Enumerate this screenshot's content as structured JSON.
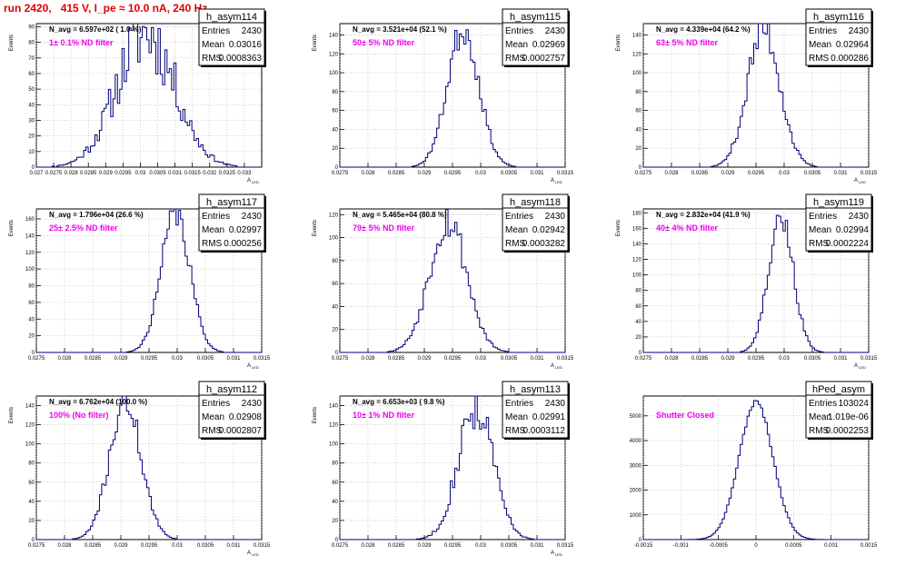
{
  "title": "run 2420,   415 V, I_pe ≈ 10.0 nA, 240 Hz",
  "colors": {
    "title": "#e00000",
    "histogram": "#00007a",
    "filter_label": "#ee00ee",
    "grid": "#b0b0b0"
  },
  "chart_data": [
    {
      "type": "histogram",
      "name": "h_asym114",
      "navg": "N_avg = 6.597e+02 ( 1.0 %)",
      "filter": "1± 0.1% ND filter",
      "xlabel": "A_LED",
      "ylabel": "Events",
      "xlim": [
        0.027,
        0.0335
      ],
      "ylim": [
        0,
        92
      ],
      "xticks": [
        "0.027",
        "0.0275",
        "0.028",
        "0.0285",
        "0.029",
        "0.0295",
        "0.03",
        "0.0305",
        "0.031",
        "0.0315",
        "0.032",
        "0.0325",
        "0.033"
      ],
      "yticks": [
        0,
        10,
        20,
        30,
        40,
        50,
        60,
        70,
        80,
        90
      ],
      "stats": {
        "Entries": "2430",
        "Mean": "0.03016",
        "RMS": "0.0008363"
      },
      "data": {
        "mean": 0.03016,
        "sigma": 0.00084,
        "peak": 86,
        "nbins": 100,
        "noise": 0.28,
        "seed": 11
      }
    },
    {
      "type": "histogram",
      "name": "h_asym115",
      "navg": "N_avg = 3.521e+04 (52.1 %)",
      "filter": "50± 5% ND filter",
      "xlabel": "A_LED",
      "ylabel": "Events",
      "xlim": [
        0.0275,
        0.0315
      ],
      "ylim": [
        0,
        152
      ],
      "xticks": [
        "0.0275",
        "0.028",
        "0.0285",
        "0.029",
        "0.0295",
        "0.03",
        "0.0305",
        "0.031",
        "0.0315"
      ],
      "yticks": [
        0,
        20,
        40,
        60,
        80,
        100,
        120,
        140
      ],
      "stats": {
        "Entries": "2430",
        "Mean": "0.02969",
        "RMS": "0.0002757"
      },
      "data": {
        "mean": 0.02969,
        "sigma": 0.00028,
        "peak": 146,
        "nbins": 100,
        "noise": 0.12,
        "seed": 23
      }
    },
    {
      "type": "histogram",
      "name": "h_asym116",
      "navg": "N_avg = 4.339e+04 (64.2 %)",
      "filter": "63± 5% ND filter",
      "xlabel": "A_LED",
      "ylabel": "Events",
      "xlim": [
        0.0275,
        0.0315
      ],
      "ylim": [
        0,
        152
      ],
      "xticks": [
        "0.0275",
        "0.028",
        "0.0285",
        "0.029",
        "0.0295",
        "0.03",
        "0.0305",
        "0.031",
        "0.0315"
      ],
      "yticks": [
        0,
        20,
        40,
        60,
        80,
        100,
        120,
        140
      ],
      "stats": {
        "Entries": "2430",
        "Mean": "0.02964",
        "RMS": "0.000286"
      },
      "data": {
        "mean": 0.02964,
        "sigma": 0.000285,
        "peak": 148,
        "nbins": 100,
        "noise": 0.15,
        "seed": 37
      }
    },
    {
      "type": "histogram",
      "name": "h_asym117",
      "navg": "N_avg = 1.796e+04 (26.6 %)",
      "filter": "25± 2.5% ND filter",
      "xlabel": "A_LED",
      "ylabel": "Events",
      "xlim": [
        0.0275,
        0.0315
      ],
      "ylim": [
        0,
        172
      ],
      "xticks": [
        "0.0275",
        "0.028",
        "0.0285",
        "0.029",
        "0.0295",
        "0.03",
        "0.0305",
        "0.031",
        "0.0315"
      ],
      "yticks": [
        0,
        20,
        40,
        60,
        80,
        100,
        120,
        140,
        160
      ],
      "stats": {
        "Entries": "2430",
        "Mean": "0.02997",
        "RMS": "0.000256"
      },
      "data": {
        "mean": 0.02997,
        "sigma": 0.000256,
        "peak": 166,
        "nbins": 100,
        "noise": 0.1,
        "seed": 41
      }
    },
    {
      "type": "histogram",
      "name": "h_asym118",
      "navg": "N_avg = 5.465e+04 (80.8 %)",
      "filter": "79± 5% ND filter",
      "xlabel": "A_LED",
      "ylabel": "Events",
      "xlim": [
        0.0275,
        0.0315
      ],
      "ylim": [
        0,
        125
      ],
      "xticks": [
        "0.0275",
        "0.028",
        "0.0285",
        "0.029",
        "0.0295",
        "0.03",
        "0.0305",
        "0.031",
        "0.0315"
      ],
      "yticks": [
        0,
        20,
        40,
        60,
        80,
        100,
        120
      ],
      "stats": {
        "Entries": "2430",
        "Mean": "0.02942",
        "RMS": "0.0003282"
      },
      "data": {
        "mean": 0.02942,
        "sigma": 0.00033,
        "peak": 116,
        "nbins": 100,
        "noise": 0.15,
        "seed": 53
      }
    },
    {
      "type": "histogram",
      "name": "h_asym119",
      "navg": "N_avg = 2.832e+04 (41.9 %)",
      "filter": "40± 4% ND filter",
      "xlabel": "A_LED",
      "ylabel": "Events",
      "xlim": [
        0.0275,
        0.0315
      ],
      "ylim": [
        0,
        185
      ],
      "xticks": [
        "0.0275",
        "0.028",
        "0.0285",
        "0.029",
        "0.0295",
        "0.03",
        "0.0305",
        "0.031",
        "0.0315"
      ],
      "yticks": [
        0,
        20,
        40,
        60,
        80,
        100,
        120,
        140,
        160,
        180
      ],
      "stats": {
        "Entries": "2430",
        "Mean": "0.02994",
        "RMS": "0.0002224"
      },
      "data": {
        "mean": 0.02994,
        "sigma": 0.00022,
        "peak": 176,
        "nbins": 100,
        "noise": 0.1,
        "seed": 67
      }
    },
    {
      "type": "histogram",
      "name": "h_asym112",
      "navg": "N_avg = 6.762e+04 (100.0 %)",
      "filter": "100% (No filter)",
      "xlabel": "A_LED",
      "ylabel": "Events",
      "xlim": [
        0.0275,
        0.0315
      ],
      "ylim": [
        0,
        150
      ],
      "xticks": [
        "0.0275",
        "0.028",
        "0.0285",
        "0.029",
        "0.0295",
        "0.03",
        "0.0305",
        "0.031",
        "0.0315"
      ],
      "yticks": [
        0,
        20,
        40,
        60,
        80,
        100,
        120,
        140
      ],
      "stats": {
        "Entries": "2430",
        "Mean": "0.02908",
        "RMS": "0.0002807"
      },
      "data": {
        "mean": 0.02908,
        "sigma": 0.00028,
        "peak": 145,
        "nbins": 100,
        "noise": 0.12,
        "seed": 71
      }
    },
    {
      "type": "histogram",
      "name": "h_asym113",
      "navg": "N_avg = 6.653e+03 ( 9.8 %)",
      "filter": "10± 1% ND filter",
      "xlabel": "A_LED",
      "ylabel": "Events",
      "xlim": [
        0.0275,
        0.0315
      ],
      "ylim": [
        0,
        150
      ],
      "xticks": [
        "0.0275",
        "0.028",
        "0.0285",
        "0.029",
        "0.0295",
        "0.03",
        "0.0305",
        "0.031",
        "0.0315"
      ],
      "yticks": [
        0,
        20,
        40,
        60,
        80,
        100,
        120,
        140
      ],
      "stats": {
        "Entries": "2430",
        "Mean": "0.02991",
        "RMS": "0.0003112"
      },
      "data": {
        "mean": 0.02991,
        "sigma": 0.00031,
        "peak": 140,
        "nbins": 100,
        "noise": 0.18,
        "seed": 83
      }
    },
    {
      "type": "histogram",
      "name": "hPed_asym",
      "navg": "",
      "filter": "Shutter Closed",
      "xlabel": "",
      "ylabel": "",
      "xlim": [
        -0.0015,
        0.0015
      ],
      "ylim": [
        0,
        5800
      ],
      "xticks": [
        "-0.0015",
        "-0.001",
        "-0.0005",
        "0",
        "0.0005",
        "0.001",
        "0.0015"
      ],
      "yticks": [
        0,
        1000,
        2000,
        3000,
        4000,
        5000
      ],
      "stats": {
        "Entries": "103024",
        "Mean": "1.019e-06",
        "RMS": "0.0002253"
      },
      "data": {
        "mean": 1e-06,
        "sigma": 0.000225,
        "peak": 5550,
        "nbins": 100,
        "noise": 0.02,
        "seed": 97
      }
    }
  ]
}
